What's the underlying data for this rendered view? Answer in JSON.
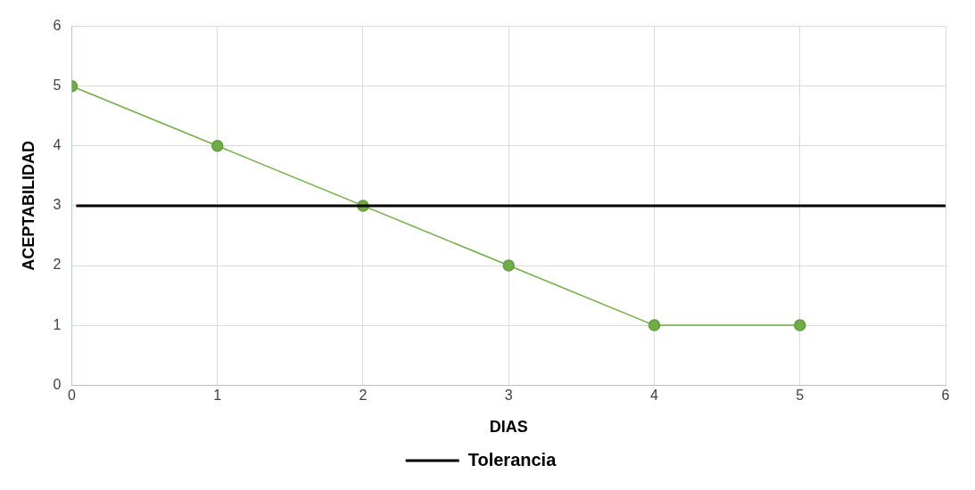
{
  "chart_data": {
    "type": "line",
    "xlabel": "DIAS",
    "ylabel": "ACEPTABILIDAD",
    "xlim": [
      0,
      6
    ],
    "xticks": [
      0,
      1,
      2,
      3,
      4,
      5,
      6
    ],
    "ylim": [
      0,
      6
    ],
    "yticks": [
      0,
      1,
      2,
      3,
      4,
      5,
      6
    ],
    "grid": true,
    "legend": "bottom",
    "series": [
      {
        "color": "#70ad47",
        "x": [
          0,
          1,
          2,
          3,
          4,
          5
        ],
        "values": [
          5,
          4,
          3,
          2,
          1,
          1
        ],
        "marker": "circle"
      },
      {
        "name": "Tolerancia",
        "color": "#000000",
        "x": [
          0.03,
          6
        ],
        "values": [
          3,
          3
        ],
        "marker": "none"
      }
    ]
  }
}
